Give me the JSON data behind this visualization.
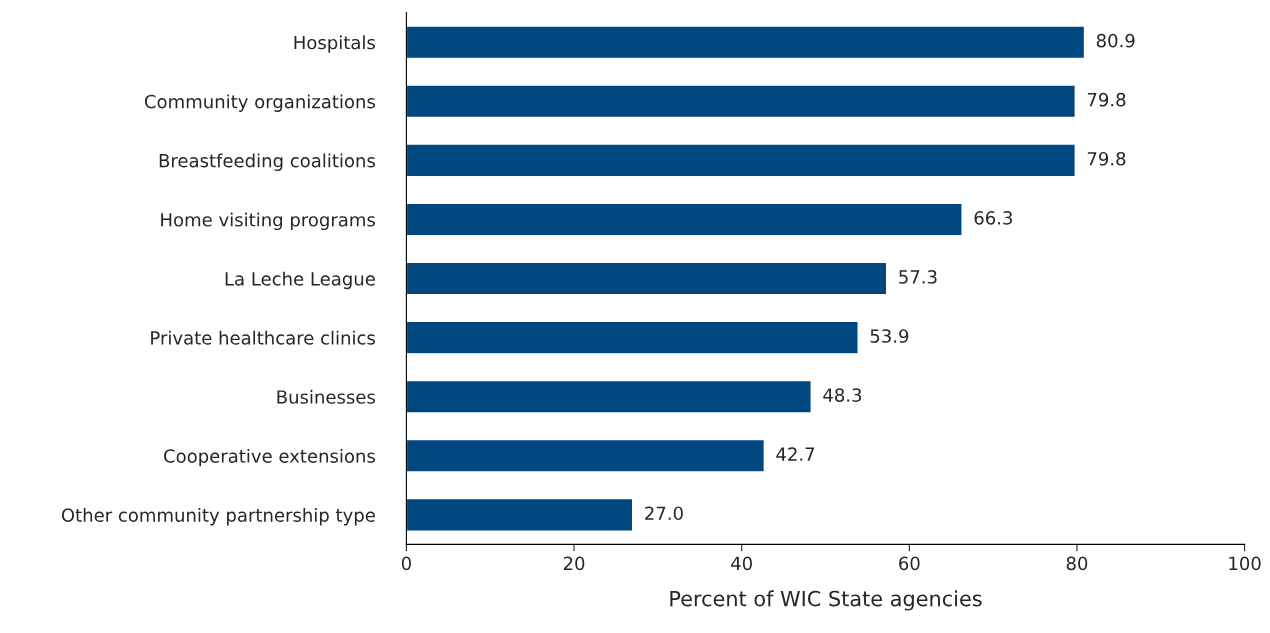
{
  "chart_data": {
    "type": "bar",
    "orientation": "horizontal",
    "xlabel": "Percent of WIC State agencies",
    "categories": [
      "Hospitals",
      "Community organizations",
      "Breastfeeding coalitions",
      "Home visiting programs",
      "La Leche League",
      "Private healthcare clinics",
      "Businesses",
      "Cooperative extensions",
      "Other community partnership type"
    ],
    "values": [
      80.9,
      79.8,
      79.8,
      66.3,
      57.3,
      53.9,
      48.3,
      42.7,
      27.0
    ],
    "value_labels": [
      "80.9",
      "79.8",
      "79.8",
      "66.3",
      "57.3",
      "53.9",
      "48.3",
      "42.7",
      "27.0"
    ],
    "color": "#00467f",
    "xlim": [
      0,
      100
    ],
    "xticks": [
      0,
      20,
      40,
      60,
      80,
      100
    ],
    "grid": false
  }
}
